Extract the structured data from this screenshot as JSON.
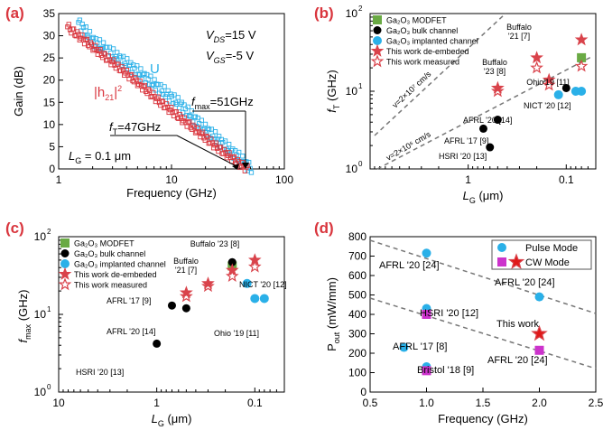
{
  "colors": {
    "red": "#d9363e",
    "cyan": "#2ab0e8",
    "green": "#6aaa44",
    "black": "#000000",
    "magenta": "#cc33cc",
    "star": "#d9434b"
  },
  "panels": {
    "a": {
      "tag": "(a)",
      "xlabel": "Frequency (GHz)",
      "ylabel": "Gain (dB)",
      "xticks": [
        "1",
        "10",
        "100"
      ],
      "yticks": [
        "0",
        "5",
        "10",
        "15",
        "20",
        "25",
        "30",
        "35"
      ],
      "vds": "V",
      "vds_sub": "DS",
      "vds_val": "=15 V",
      "vgs": "V",
      "vgs_sub": "GS",
      "vgs_val": "=-5 V",
      "u_label": "U",
      "h21_label": "|h",
      "h21_sub": "21",
      "h21_end": "|",
      "fmax_label": "f",
      "fmax_sub": "max",
      "fmax_val": "=51GHz",
      "ft_label": "f",
      "ft_sub": "T",
      "ft_val": "=47GHz",
      "lg_label": "L",
      "lg_sub": "G",
      "lg_val": " = 0.1 μm"
    },
    "b": {
      "tag": "(b)",
      "ylabel": "f",
      "ylabel_sub": "T",
      "ylabel_unit": " (GHz)",
      "xlabel": "L",
      "xlabel_sub": "G",
      "xlabel_unit": " (μm)",
      "xticks": [
        "1",
        "0.1"
      ],
      "yticks": [
        "10",
        "10",
        "10"
      ],
      "ytick_exp": [
        "0",
        "1",
        "2"
      ],
      "legend": [
        "Ga₂O₃ MODFET",
        "Ga₂O₃ bulk channel",
        "Ga₂O₃ implanted channel",
        "This work de-embeded",
        "This work measured"
      ],
      "line1": "v=2×10⁷ cm/s",
      "line2": "v=2×10⁶ cm/s",
      "annotations": [
        "Buffalo '21 [7]",
        "Buffalo '23 [8]",
        "Ohio'19 [11]",
        "NICT '20 [12]",
        "AFRL '20 [14]",
        "AFRL '17 [9]",
        "HSRI '20 [13]"
      ]
    },
    "c": {
      "tag": "(c)",
      "ylabel": "f",
      "ylabel_sub": "max",
      "ylabel_unit": " (GHz)",
      "xlabel": "L",
      "xlabel_sub": "G",
      "xlabel_unit": " (μm)",
      "xticks": [
        "10",
        "1",
        "0.1"
      ],
      "yticks": [
        "10",
        "10",
        "10"
      ],
      "ytick_exp": [
        "0",
        "1",
        "2"
      ],
      "legend": [
        "Ga₂O₃ MODFET",
        "Ga₂O₃ bulk channel",
        "Ga₂O₃ implanted channel",
        "This work de-embeded",
        "This work measured"
      ],
      "annotations": [
        "Buffalo '23 [8]",
        "Buffalo '21 [7]",
        "NICT '20 [12]",
        "AFRL '17 [9]",
        "Ohio '19 [11]",
        "AFRL '20 [14]",
        "HSRI '20 [13]"
      ]
    },
    "d": {
      "tag": "(d)",
      "ylabel": "P",
      "ylabel_sub": "out",
      "ylabel_unit": " (mW/mm)",
      "xlabel": "Frequency (GHz)",
      "xticks": [
        "0.5",
        "1.0",
        "1.5",
        "2.0",
        "2.5"
      ],
      "yticks": [
        "0",
        "100",
        "200",
        "300",
        "400",
        "500",
        "600",
        "700",
        "800"
      ],
      "legend": [
        "Pulse Mode",
        "CW Mode"
      ],
      "annotations": [
        "AFRL '20 [24]",
        "AFRL '20 [24]",
        "HSRI '20 [12]",
        "This work",
        "AFRL '17 [8]",
        "AFRL '20 [24]",
        "Bristol '18 [9]"
      ]
    }
  },
  "chart_data": [
    {
      "type": "scatter",
      "title": "",
      "xlabel": "Frequency (GHz)",
      "ylabel": "Gain (dB)",
      "xscale": "log",
      "xlim": [
        1,
        100
      ],
      "ylim": [
        0,
        35
      ],
      "series": [
        {
          "name": "U",
          "x": [
            1.5,
            2,
            3,
            5,
            8,
            12,
            18,
            25,
            32,
            38,
            44,
            48,
            51
          ],
          "y": [
            33,
            29,
            26,
            22,
            18,
            14.5,
            10,
            7,
            4.5,
            3,
            1.5,
            0.6,
            0
          ]
        },
        {
          "name": "|h21|²",
          "x": [
            1.2,
            1.5,
            2,
            3,
            5,
            8,
            12,
            18,
            25,
            32,
            38,
            43,
            47
          ],
          "y": [
            32,
            30,
            27.5,
            24,
            19.5,
            15,
            11.5,
            8,
            5,
            3,
            1.6,
            0.6,
            0
          ]
        }
      ]
    },
    {
      "type": "scatter",
      "title": "",
      "xlabel": "LG (μm)",
      "ylabel": "fT (GHz)",
      "xscale": "log",
      "yscale": "log",
      "xlim": [
        10,
        0.05
      ],
      "ylim": [
        1,
        100
      ],
      "series": [
        {
          "name": "Ga₂O₃ MODFET",
          "x": [
            0.07
          ],
          "y": [
            27
          ]
        },
        {
          "name": "Ga₂O₃ bulk channel",
          "x": [
            0.5,
            0.7,
            0.6,
            0.1
          ],
          "y": [
            4.3,
            3.3,
            1.9,
            11
          ]
        },
        {
          "name": "Ga₂O₃ implanted channel",
          "x": [
            0.12,
            0.08,
            0.07
          ],
          "y": [
            9,
            10,
            10
          ]
        },
        {
          "name": "This work de-embeded",
          "x": [
            0.07,
            0.2,
            0.15,
            0.5
          ],
          "y": [
            46,
            27,
            14,
            11
          ]
        },
        {
          "name": "This work measured",
          "x": [
            0.07,
            0.2,
            0.15,
            0.5
          ],
          "y": [
            21,
            20,
            12,
            10
          ]
        }
      ]
    },
    {
      "type": "scatter",
      "title": "",
      "xlabel": "LG (μm)",
      "ylabel": "fmax (GHz)",
      "xscale": "log",
      "yscale": "log",
      "xlim": [
        10,
        0.05
      ],
      "ylim": [
        1,
        100
      ],
      "series": [
        {
          "name": "Ga₂O₃ MODFET",
          "x": [
            0.17
          ],
          "y": [
            42
          ]
        },
        {
          "name": "Ga₂O₃ bulk channel",
          "x": [
            0.7,
            0.5,
            1.0,
            0.17
          ],
          "y": [
            13,
            12,
            4.2,
            47
          ]
        },
        {
          "name": "Ga₂O₃ implanted channel",
          "x": [
            0.12,
            0.1,
            0.08
          ],
          "y": [
            25,
            16,
            16
          ]
        },
        {
          "name": "This work de-embeded",
          "x": [
            0.5,
            0.3,
            0.17,
            0.1
          ],
          "y": [
            19,
            25,
            37,
            50
          ]
        },
        {
          "name": "This work measured",
          "x": [
            0.5,
            0.3,
            0.17,
            0.1
          ],
          "y": [
            17,
            23,
            31,
            41
          ]
        }
      ]
    },
    {
      "type": "scatter",
      "title": "",
      "xlabel": "Frequency (GHz)",
      "ylabel": "Pout (mW/mm)",
      "xlim": [
        0.5,
        2.5
      ],
      "ylim": [
        0,
        800
      ],
      "series": [
        {
          "name": "Pulse Mode",
          "x": [
            1.0,
            2.0,
            1.0,
            0.8,
            1.0
          ],
          "y": [
            715,
            490,
            430,
            230,
            130
          ]
        },
        {
          "name": "CW Mode",
          "x": [
            1.0,
            2.0,
            1.0
          ],
          "y": [
            400,
            215,
            110
          ]
        },
        {
          "name": "This work",
          "x": [
            2.0
          ],
          "y": [
            300
          ]
        }
      ]
    }
  ]
}
